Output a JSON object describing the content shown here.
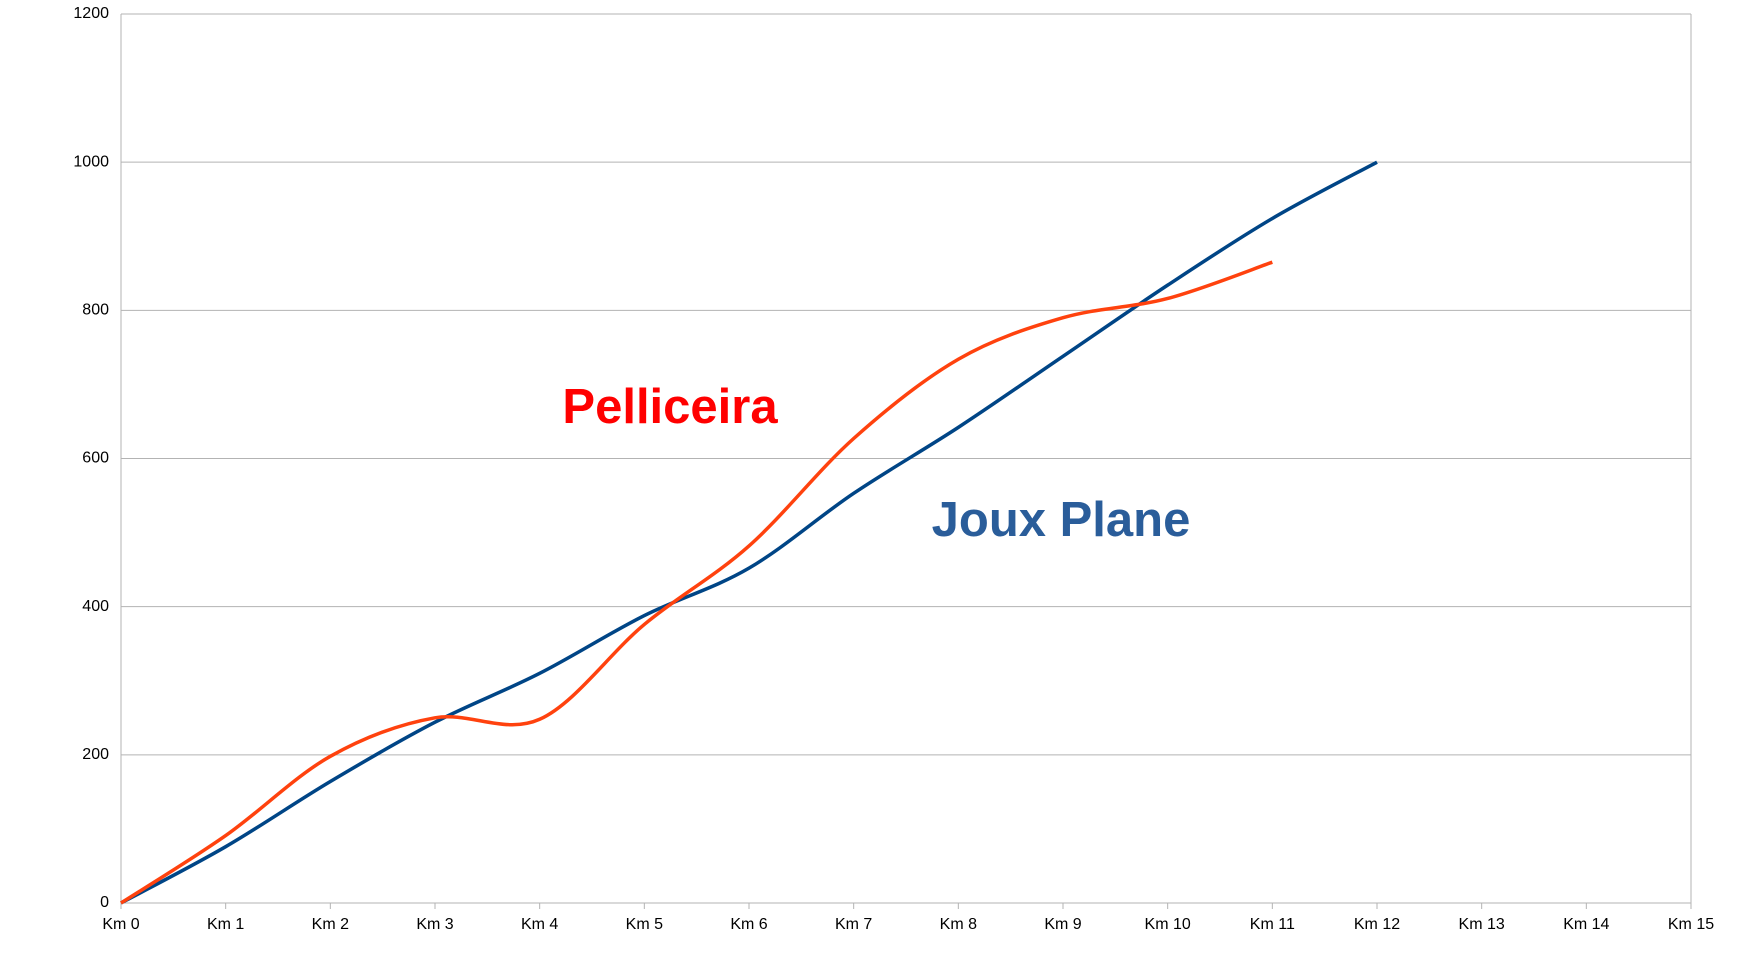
{
  "chart_data": {
    "type": "line",
    "categories": [
      "Km 0",
      "Km 1",
      "Km 2",
      "Km 3",
      "Km 4",
      "Km 5",
      "Km 6",
      "Km 7",
      "Km 8",
      "Km 9",
      "Km 10",
      "Km 11",
      "Km 12",
      "Km 13",
      "Km 14",
      "Km 15"
    ],
    "series": [
      {
        "name": "Joux Plane",
        "color": "#004586",
        "label_color": "#2a5d9a",
        "values": [
          0,
          76,
          164,
          244,
          310,
          388,
          452,
          553,
          642,
          738,
          834,
          924,
          1000,
          null,
          null,
          null
        ]
      },
      {
        "name": "Pelliceira",
        "color": "#ff420e",
        "label_color": "#ff0000",
        "values": [
          0,
          91,
          198,
          250,
          248,
          376,
          482,
          627,
          734,
          790,
          816,
          865,
          null,
          null,
          null,
          null
        ]
      }
    ],
    "ylim": [
      0,
      1200
    ],
    "yticks": [
      0,
      200,
      400,
      600,
      800,
      1000,
      1200
    ],
    "grid": true
  }
}
